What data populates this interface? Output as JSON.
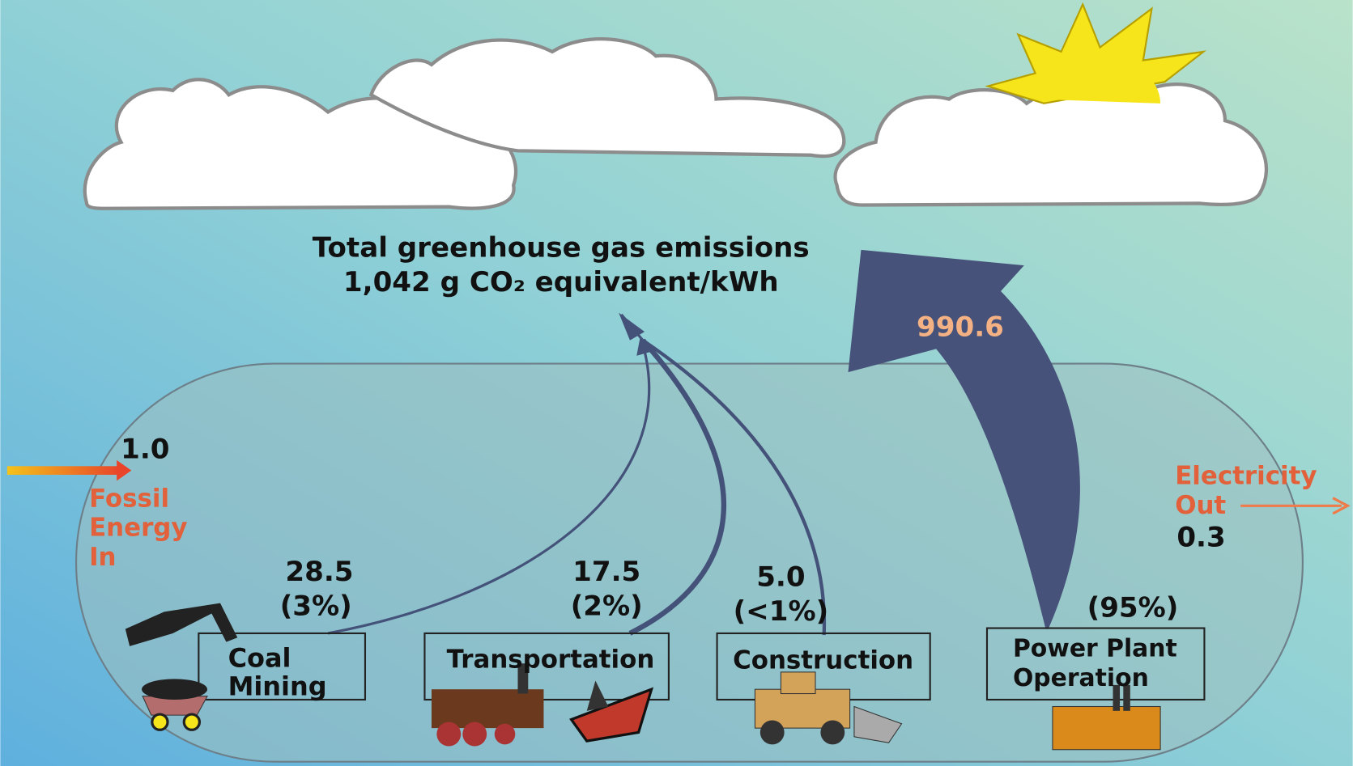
{
  "total": {
    "lines": [
      "Total greenhouse gas emissions",
      "1,042 g CO₂ equivalent/kWh"
    ]
  },
  "input": {
    "value": "1.0",
    "lines": [
      "Fossil",
      "Energy",
      "In"
    ]
  },
  "output": {
    "value": "0.3",
    "lines": [
      "Electricity",
      "Out"
    ]
  },
  "stages": [
    {
      "label": [
        "Coal",
        "Mining"
      ],
      "value": "28.5",
      "share": "(3%)"
    },
    {
      "label": [
        "Transportation"
      ],
      "value": "17.5",
      "share": "(2%)"
    },
    {
      "label": [
        "Construction"
      ],
      "value": "5.0",
      "share": "(<1%)"
    },
    {
      "label": [
        "Power Plant",
        "Operation"
      ],
      "value": "990.6",
      "share": "(95%)"
    }
  ]
}
